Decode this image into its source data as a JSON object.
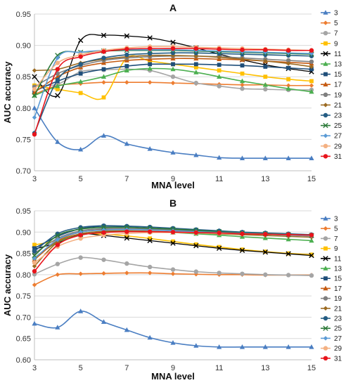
{
  "figure": {
    "panels": [
      "A",
      "B"
    ]
  },
  "chart_data": [
    {
      "type": "line",
      "title": "A",
      "xlabel": "MNA level",
      "ylabel": "AUC accuracy",
      "xlim": [
        3,
        15
      ],
      "ylim": [
        0.7,
        0.95
      ],
      "xticks": [
        3,
        5,
        7,
        9,
        11,
        13,
        15
      ],
      "yticks": [
        0.7,
        0.75,
        0.8,
        0.85,
        0.9,
        0.95
      ],
      "grid": "horizontal",
      "legend_position": "right",
      "x": [
        3,
        4,
        5,
        6,
        7,
        8,
        9,
        10,
        11,
        12,
        13,
        14,
        15
      ],
      "series": [
        {
          "name": "3",
          "color": "#4a7ec2",
          "marker": "triangle",
          "values": [
            0.8,
            0.746,
            0.734,
            0.756,
            0.743,
            0.735,
            0.729,
            0.725,
            0.721,
            0.72,
            0.72,
            0.72,
            0.72
          ]
        },
        {
          "name": "5",
          "color": "#ed7d31",
          "marker": "diamond",
          "values": [
            0.822,
            0.836,
            0.839,
            0.841,
            0.841,
            0.841,
            0.84,
            0.839,
            0.838,
            0.837,
            0.837,
            0.836,
            0.836
          ]
        },
        {
          "name": "7",
          "color": "#a5a5a5",
          "marker": "circle",
          "values": [
            0.836,
            0.838,
            0.858,
            0.861,
            0.862,
            0.86,
            0.85,
            0.84,
            0.835,
            0.831,
            0.83,
            0.829,
            0.829
          ]
        },
        {
          "name": "9",
          "color": "#ffc000",
          "marker": "square",
          "values": [
            0.836,
            0.83,
            0.824,
            0.817,
            0.88,
            0.875,
            0.87,
            0.865,
            0.86,
            0.855,
            0.85,
            0.846,
            0.843
          ]
        },
        {
          "name": "11",
          "color": "#000000",
          "marker": "x",
          "values": [
            0.85,
            0.82,
            0.908,
            0.916,
            0.915,
            0.912,
            0.905,
            0.896,
            0.886,
            0.877,
            0.869,
            0.863,
            0.858
          ]
        },
        {
          "name": "13",
          "color": "#4caf50",
          "marker": "triangle",
          "values": [
            0.82,
            0.835,
            0.842,
            0.85,
            0.86,
            0.863,
            0.862,
            0.857,
            0.85,
            0.843,
            0.837,
            0.831,
            0.826
          ]
        },
        {
          "name": "15",
          "color": "#1f4e79",
          "marker": "square",
          "values": [
            0.827,
            0.843,
            0.855,
            0.862,
            0.867,
            0.87,
            0.87,
            0.87,
            0.869,
            0.868,
            0.866,
            0.864,
            0.862
          ]
        },
        {
          "name": "17",
          "color": "#c55a11",
          "marker": "triangle",
          "values": [
            0.825,
            0.85,
            0.865,
            0.872,
            0.876,
            0.878,
            0.879,
            0.879,
            0.878,
            0.877,
            0.875,
            0.873,
            0.871
          ]
        },
        {
          "name": "19",
          "color": "#7f7f7f",
          "marker": "circle",
          "values": [
            0.834,
            0.855,
            0.868,
            0.876,
            0.88,
            0.882,
            0.883,
            0.883,
            0.882,
            0.88,
            0.878,
            0.876,
            0.874
          ]
        },
        {
          "name": "21",
          "color": "#9c6b22",
          "marker": "diamond",
          "values": [
            0.86,
            0.862,
            0.872,
            0.878,
            0.882,
            0.884,
            0.884,
            0.883,
            0.881,
            0.878,
            0.875,
            0.871,
            0.866
          ]
        },
        {
          "name": "23",
          "color": "#245d84",
          "marker": "circle",
          "values": [
            0.76,
            0.845,
            0.87,
            0.88,
            0.885,
            0.887,
            0.888,
            0.888,
            0.887,
            0.886,
            0.885,
            0.884,
            0.883
          ]
        },
        {
          "name": "25",
          "color": "#2d7a3a",
          "marker": "x",
          "values": [
            0.82,
            0.884,
            0.889,
            0.891,
            0.892,
            0.892,
            0.892,
            0.891,
            0.89,
            0.889,
            0.888,
            0.887,
            0.886
          ]
        },
        {
          "name": "27",
          "color": "#5b9bd5",
          "marker": "diamond",
          "values": [
            0.785,
            0.88,
            0.889,
            0.892,
            0.893,
            0.893,
            0.893,
            0.892,
            0.891,
            0.89,
            0.889,
            0.888,
            0.887
          ]
        },
        {
          "name": "29",
          "color": "#f4b183",
          "marker": "circle",
          "values": [
            0.83,
            0.872,
            0.885,
            0.892,
            0.896,
            0.898,
            0.898,
            0.897,
            0.896,
            0.895,
            0.894,
            0.893,
            0.892
          ]
        },
        {
          "name": "31",
          "color": "#e8141b",
          "marker": "circle",
          "values": [
            0.758,
            0.862,
            0.882,
            0.89,
            0.894,
            0.895,
            0.895,
            0.895,
            0.894,
            0.893,
            0.893,
            0.892,
            0.892
          ]
        }
      ]
    },
    {
      "type": "line",
      "title": "B",
      "xlabel": "MNA level",
      "ylabel": "AUC accuracy",
      "xlim": [
        3,
        15
      ],
      "ylim": [
        0.6,
        0.95
      ],
      "xticks": [
        3,
        5,
        7,
        9,
        11,
        13,
        15
      ],
      "yticks": [
        0.6,
        0.65,
        0.7,
        0.75,
        0.8,
        0.85,
        0.9,
        0.95
      ],
      "grid": "horizontal",
      "legend_position": "right",
      "x": [
        3,
        4,
        5,
        6,
        7,
        8,
        9,
        10,
        11,
        12,
        13,
        14,
        15
      ],
      "series": [
        {
          "name": "3",
          "color": "#4a7ec2",
          "marker": "triangle",
          "values": [
            0.685,
            0.676,
            0.714,
            0.689,
            0.67,
            0.652,
            0.64,
            0.633,
            0.63,
            0.63,
            0.63,
            0.63,
            0.63
          ]
        },
        {
          "name": "5",
          "color": "#ed7d31",
          "marker": "diamond",
          "values": [
            0.776,
            0.8,
            0.802,
            0.803,
            0.804,
            0.804,
            0.802,
            0.801,
            0.8,
            0.8,
            0.799,
            0.799,
            0.799
          ]
        },
        {
          "name": "7",
          "color": "#a5a5a5",
          "marker": "circle",
          "values": [
            0.801,
            0.825,
            0.84,
            0.835,
            0.826,
            0.818,
            0.812,
            0.807,
            0.804,
            0.802,
            0.8,
            0.799,
            0.798
          ]
        },
        {
          "name": "9",
          "color": "#ffc000",
          "marker": "square",
          "values": [
            0.87,
            0.88,
            0.895,
            0.895,
            0.891,
            0.885,
            0.878,
            0.871,
            0.865,
            0.859,
            0.854,
            0.85,
            0.847
          ]
        },
        {
          "name": "11",
          "color": "#000000",
          "marker": "x",
          "values": [
            0.86,
            0.875,
            0.895,
            0.892,
            0.886,
            0.88,
            0.874,
            0.868,
            0.862,
            0.857,
            0.853,
            0.849,
            0.845
          ]
        },
        {
          "name": "13",
          "color": "#4caf50",
          "marker": "triangle",
          "values": [
            0.84,
            0.876,
            0.893,
            0.9,
            0.902,
            0.901,
            0.899,
            0.896,
            0.893,
            0.889,
            0.886,
            0.883,
            0.88
          ]
        },
        {
          "name": "15",
          "color": "#1f4e79",
          "marker": "square",
          "values": [
            0.862,
            0.89,
            0.908,
            0.914,
            0.912,
            0.909,
            0.906,
            0.903,
            0.9,
            0.898,
            0.896,
            0.894,
            0.892
          ]
        },
        {
          "name": "17",
          "color": "#c55a11",
          "marker": "triangle",
          "values": [
            0.835,
            0.88,
            0.9,
            0.906,
            0.907,
            0.906,
            0.904,
            0.902,
            0.899,
            0.897,
            0.895,
            0.893,
            0.891
          ]
        },
        {
          "name": "19",
          "color": "#7f7f7f",
          "marker": "circle",
          "values": [
            0.85,
            0.885,
            0.903,
            0.908,
            0.908,
            0.907,
            0.905,
            0.903,
            0.901,
            0.899,
            0.897,
            0.895,
            0.893
          ]
        },
        {
          "name": "21",
          "color": "#9c6b22",
          "marker": "diamond",
          "values": [
            0.82,
            0.876,
            0.896,
            0.902,
            0.903,
            0.902,
            0.9,
            0.898,
            0.896,
            0.894,
            0.892,
            0.89,
            0.888
          ]
        },
        {
          "name": "23",
          "color": "#245d84",
          "marker": "circle",
          "values": [
            0.855,
            0.896,
            0.911,
            0.915,
            0.914,
            0.912,
            0.909,
            0.906,
            0.903,
            0.9,
            0.898,
            0.896,
            0.894
          ]
        },
        {
          "name": "25",
          "color": "#2d7a3a",
          "marker": "x",
          "values": [
            0.845,
            0.892,
            0.907,
            0.911,
            0.911,
            0.909,
            0.907,
            0.904,
            0.901,
            0.898,
            0.896,
            0.894,
            0.892
          ]
        },
        {
          "name": "27",
          "color": "#5b9bd5",
          "marker": "diamond",
          "values": [
            0.838,
            0.882,
            0.9,
            0.905,
            0.906,
            0.905,
            0.903,
            0.901,
            0.899,
            0.897,
            0.895,
            0.893,
            0.891
          ]
        },
        {
          "name": "29",
          "color": "#f4b183",
          "marker": "circle",
          "values": [
            0.828,
            0.866,
            0.885,
            0.893,
            0.897,
            0.899,
            0.899,
            0.898,
            0.897,
            0.896,
            0.895,
            0.894,
            0.893
          ]
        },
        {
          "name": "31",
          "color": "#e8141b",
          "marker": "circle",
          "values": [
            0.808,
            0.87,
            0.893,
            0.899,
            0.901,
            0.901,
            0.9,
            0.899,
            0.898,
            0.896,
            0.895,
            0.894,
            0.893
          ]
        }
      ]
    }
  ]
}
